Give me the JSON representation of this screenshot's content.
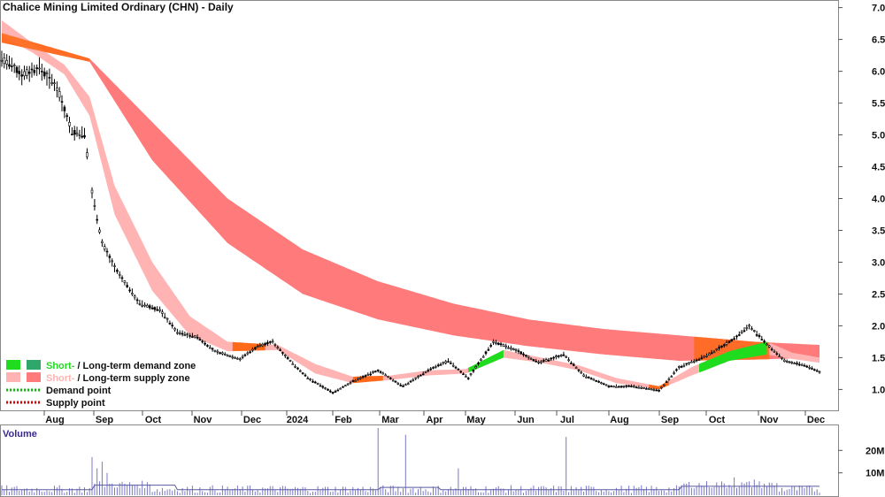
{
  "chart_data": {
    "type": "candlestick",
    "title": "Chalice Mining Limited Ordinary (CHN) - Daily",
    "y_axis_ticks": [
      "7.0",
      "6.5",
      "6.0",
      "5.5",
      "5.0",
      "4.5",
      "4.0",
      "3.5",
      "3.0",
      "2.5",
      "2.0",
      "1.5",
      "1.0"
    ],
    "ylim": [
      0.7,
      7.05
    ],
    "x_axis_labels": [
      "Aug",
      "Sep",
      "Oct",
      "Nov",
      "Dec",
      "2024",
      "Feb",
      "Mar",
      "Apr",
      "May",
      "Jun",
      "Jul",
      "Aug",
      "Sep",
      "Oct",
      "Nov",
      "Dec"
    ],
    "price_points": [
      {
        "t": 0,
        "v": 6.2
      },
      {
        "t": 8,
        "v": 5.95
      },
      {
        "t": 15,
        "v": 6.05
      },
      {
        "t": 22,
        "v": 5.75
      },
      {
        "t": 28,
        "v": 5.05
      },
      {
        "t": 33,
        "v": 5.0
      },
      {
        "t": 36,
        "v": 4.1
      },
      {
        "t": 40,
        "v": 3.3
      },
      {
        "t": 46,
        "v": 2.85
      },
      {
        "t": 55,
        "v": 2.35
      },
      {
        "t": 63,
        "v": 2.25
      },
      {
        "t": 70,
        "v": 1.9
      },
      {
        "t": 78,
        "v": 1.82
      },
      {
        "t": 85,
        "v": 1.6
      },
      {
        "t": 95,
        "v": 1.48
      },
      {
        "t": 102,
        "v": 1.68
      },
      {
        "t": 108,
        "v": 1.75
      },
      {
        "t": 115,
        "v": 1.45
      },
      {
        "t": 122,
        "v": 1.18
      },
      {
        "t": 132,
        "v": 0.95
      },
      {
        "t": 140,
        "v": 1.13
      },
      {
        "t": 150,
        "v": 1.3
      },
      {
        "t": 160,
        "v": 1.05
      },
      {
        "t": 170,
        "v": 1.3
      },
      {
        "t": 178,
        "v": 1.45
      },
      {
        "t": 186,
        "v": 1.18
      },
      {
        "t": 196,
        "v": 1.75
      },
      {
        "t": 206,
        "v": 1.6
      },
      {
        "t": 214,
        "v": 1.42
      },
      {
        "t": 224,
        "v": 1.55
      },
      {
        "t": 232,
        "v": 1.22
      },
      {
        "t": 242,
        "v": 1.05
      },
      {
        "t": 252,
        "v": 1.05
      },
      {
        "t": 262,
        "v": 0.98
      },
      {
        "t": 270,
        "v": 1.35
      },
      {
        "t": 282,
        "v": 1.55
      },
      {
        "t": 292,
        "v": 1.8
      },
      {
        "t": 298,
        "v": 2.0
      },
      {
        "t": 304,
        "v": 1.75
      },
      {
        "t": 312,
        "v": 1.45
      },
      {
        "t": 320,
        "v": 1.38
      },
      {
        "t": 326,
        "v": 1.28
      }
    ],
    "long_term_zone": [
      {
        "t": 0,
        "top": 6.6,
        "bot": 6.45
      },
      {
        "t": 35,
        "top": 6.2,
        "bot": 6.15
      },
      {
        "t": 60,
        "top": 5.2,
        "bot": 4.6
      },
      {
        "t": 90,
        "top": 4.0,
        "bot": 3.3
      },
      {
        "t": 120,
        "top": 3.2,
        "bot": 2.5
      },
      {
        "t": 150,
        "top": 2.7,
        "bot": 2.1
      },
      {
        "t": 180,
        "top": 2.35,
        "bot": 1.85
      },
      {
        "t": 210,
        "top": 2.1,
        "bot": 1.68
      },
      {
        "t": 240,
        "top": 1.95,
        "bot": 1.55
      },
      {
        "t": 270,
        "top": 1.85,
        "bot": 1.45
      },
      {
        "t": 300,
        "top": 1.75,
        "bot": 1.47
      },
      {
        "t": 326,
        "top": 1.7,
        "bot": 1.5
      }
    ],
    "short_term_zone": [
      {
        "t": 0,
        "top": 6.8,
        "bot": 6.55
      },
      {
        "t": 12,
        "top": 6.45,
        "bot": 6.3
      },
      {
        "t": 25,
        "top": 6.1,
        "bot": 5.95
      },
      {
        "t": 35,
        "top": 5.6,
        "bot": 5.3
      },
      {
        "t": 45,
        "top": 4.2,
        "bot": 3.75
      },
      {
        "t": 60,
        "top": 3.0,
        "bot": 2.55
      },
      {
        "t": 75,
        "top": 2.15,
        "bot": 1.85
      },
      {
        "t": 90,
        "top": 1.75,
        "bot": 1.6
      },
      {
        "t": 110,
        "top": 1.7,
        "bot": 1.62
      },
      {
        "t": 125,
        "top": 1.4,
        "bot": 1.25
      },
      {
        "t": 140,
        "top": 1.2,
        "bot": 1.1
      },
      {
        "t": 155,
        "top": 1.22,
        "bot": 1.15
      },
      {
        "t": 170,
        "top": 1.3,
        "bot": 1.22
      },
      {
        "t": 185,
        "top": 1.32,
        "bot": 1.25
      },
      {
        "t": 200,
        "top": 1.62,
        "bot": 1.5
      },
      {
        "t": 215,
        "top": 1.5,
        "bot": 1.42
      },
      {
        "t": 230,
        "top": 1.38,
        "bot": 1.3
      },
      {
        "t": 245,
        "top": 1.18,
        "bot": 1.1
      },
      {
        "t": 262,
        "top": 1.05,
        "bot": 1.0
      },
      {
        "t": 275,
        "top": 1.35,
        "bot": 1.22
      },
      {
        "t": 290,
        "top": 1.6,
        "bot": 1.45
      },
      {
        "t": 305,
        "top": 1.75,
        "bot": 1.55
      },
      {
        "t": 315,
        "top": 1.58,
        "bot": 1.48
      },
      {
        "t": 326,
        "top": 1.5,
        "bot": 1.42
      }
    ],
    "demand_segments": [
      [
        186,
        200
      ],
      [
        278,
        305
      ]
    ],
    "volume": {
      "label": "Volume",
      "axis_ticks": [
        "20M",
        "10M"
      ],
      "ylim": [
        0,
        30
      ],
      "spikes": [
        {
          "t": 36,
          "v": 17
        },
        {
          "t": 38,
          "v": 12
        },
        {
          "t": 40,
          "v": 15
        },
        {
          "t": 42,
          "v": 10
        },
        {
          "t": 150,
          "v": 30
        },
        {
          "t": 161,
          "v": 27
        },
        {
          "t": 182,
          "v": 12
        },
        {
          "t": 225,
          "v": 26
        },
        {
          "t": 292,
          "v": 8
        },
        {
          "t": 300,
          "v": 7
        }
      ]
    },
    "legend": {
      "demand_zone_short": "Short-",
      "demand_zone_long": " / Long-term demand zone",
      "supply_zone_short": "Short-",
      "supply_zone_long": " / Long-term supply zone",
      "demand_point": "Demand point",
      "supply_point": "Supply point"
    },
    "colors": {
      "long_supply": "#ff7b7b",
      "short_supply": "#ffb3b3",
      "long_demand": "#2ea86a",
      "short_demand": "#1fdc1f",
      "overlap": "#ff6a1a",
      "volume_bar": "#7878c8",
      "volume_avg": "#5a5aa0",
      "candle": "#000000",
      "demand_point": "#00c000",
      "supply_point": "#e00000"
    }
  }
}
